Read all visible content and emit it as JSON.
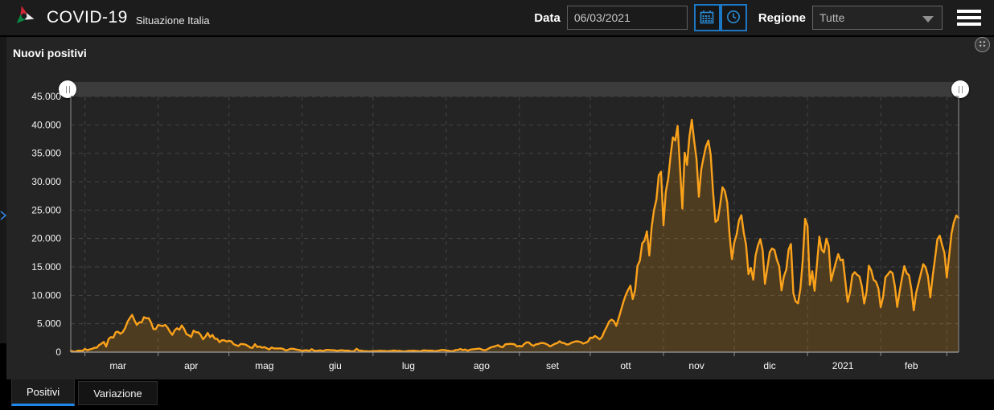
{
  "colors": {
    "accent_blue": "#1f87e8",
    "header_bg": "#1c1c1c",
    "panel_bg": "#242424"
  },
  "header": {
    "title": "COVID-19",
    "subtitle": "Situazione Italia",
    "date_label": "Data",
    "date_value": "06/03/2021",
    "region_label": "Regione",
    "region_value": "Tutte"
  },
  "panel": {
    "title": "Nuovi positivi"
  },
  "tabs": [
    {
      "label": "Positivi",
      "active": true
    },
    {
      "label": "Variazione",
      "active": false
    }
  ],
  "chart_data": {
    "type": "area",
    "title": "Nuovi positivi",
    "x_start": "2020-02-24",
    "x_end": "2021-03-06",
    "ylim": [
      0,
      45000
    ],
    "y_tick_step": 5000,
    "y_tick_labels": [
      "0",
      "5.000",
      "10.000",
      "15.000",
      "20.000",
      "25.000",
      "30.000",
      "35.000",
      "40.000",
      "45.000"
    ],
    "grid": true,
    "legend_position": "none",
    "line_color": "#fba21b",
    "fill_color": "rgba(251,162,27,0.2)",
    "grid_color": "#454545",
    "axis_color": "#909090",
    "months": [
      {
        "label": "mar",
        "start": 6,
        "mid": 20
      },
      {
        "label": "apr",
        "start": 37,
        "mid": 51
      },
      {
        "label": "mag",
        "start": 67,
        "mid": 82
      },
      {
        "label": "giu",
        "start": 98,
        "mid": 112
      },
      {
        "label": "lug",
        "start": 128,
        "mid": 143
      },
      {
        "label": "ago",
        "start": 159,
        "mid": 174
      },
      {
        "label": "set",
        "start": 190,
        "mid": 204
      },
      {
        "label": "ott",
        "start": 220,
        "mid": 235
      },
      {
        "label": "nov",
        "start": 251,
        "mid": 265
      },
      {
        "label": "dic",
        "start": 281,
        "mid": 296
      },
      {
        "label": "2021",
        "start": 312,
        "mid": 327
      },
      {
        "label": "feb",
        "start": 343,
        "mid": 356
      },
      {
        "label": "",
        "start": 371,
        "mid": null
      }
    ],
    "values": [
      221,
      93,
      78,
      250,
      238,
      240,
      566,
      342,
      466,
      587,
      769,
      778,
      1247,
      1492,
      1797,
      977,
      2313,
      2651,
      2547,
      3497,
      3590,
      3233,
      3526,
      4207,
      5322,
      5986,
      6557,
      5560,
      4789,
      5249,
      5210,
      6153,
      5959,
      5974,
      5217,
      4050,
      4053,
      4782,
      4668,
      4585,
      4805,
      4316,
      3599,
      3039,
      3836,
      4204,
      3951,
      4694,
      4092,
      3153,
      2972,
      2667,
      3786,
      3493,
      3491,
      3047,
      2256,
      2729,
      3370,
      2646,
      3021,
      2357,
      2324,
      1739,
      2091,
      2086,
      1872,
      1965,
      1900,
      1389,
      1221,
      1075,
      1444,
      1401,
      1327,
      1083,
      802,
      744,
      1402,
      888,
      992,
      789,
      875,
      675,
      451,
      813,
      665,
      642,
      652,
      669,
      531,
      300,
      397,
      584,
      593,
      516,
      416,
      355,
      178,
      318,
      321,
      177,
      518,
      270,
      197,
      280,
      283,
      202,
      379,
      393,
      346,
      338,
      301,
      210,
      329,
      331,
      251,
      262,
      224,
      113,
      190,
      577,
      296,
      255,
      174,
      175,
      126,
      142,
      187,
      182,
      201,
      235,
      192,
      208,
      138,
      193,
      229,
      276,
      188,
      234,
      169,
      114,
      162,
      230,
      233,
      249,
      219,
      190,
      128,
      282,
      306,
      252,
      275,
      255,
      170,
      212,
      289,
      386,
      379,
      295,
      239,
      159,
      190,
      384,
      402,
      552,
      347,
      463,
      259,
      412,
      481,
      523,
      574,
      629,
      479,
      320,
      403,
      642,
      845,
      947,
      1071,
      1210,
      953,
      878,
      1367,
      1411,
      1462,
      1444,
      1365,
      996,
      1108,
      978,
      1397,
      1733,
      1694,
      1297,
      1108,
      1370,
      1434,
      1597,
      1616,
      1501,
      1297,
      1008,
      1229,
      1452,
      1585,
      1907,
      1638,
      1587,
      1350,
      1392,
      1640,
      1786,
      1912,
      1869,
      1766,
      1494,
      1648,
      1851,
      2548,
      2499,
      2844,
      2578,
      2257,
      2677,
      3678,
      4458,
      5372,
      5724,
      5456,
      4619,
      5901,
      7332,
      8804,
      10010,
      10925,
      11705,
      9338,
      10874,
      15199,
      16079,
      19143,
      19644,
      21273,
      17012,
      21994,
      24991,
      26831,
      31084,
      31758,
      22348,
      28244,
      30550,
      34505,
      37809,
      37242,
      39811,
      32616,
      25271,
      35098,
      32961,
      37978,
      40902,
      37255,
      33979,
      27354,
      32191,
      34283,
      36176,
      37242,
      34767,
      28337,
      22930,
      23232,
      25853,
      29003,
      28352,
      26323,
      20648,
      16377,
      19350,
      20709,
      23225,
      24099,
      21052,
      18887,
      13720,
      14842,
      12756,
      16999,
      18727,
      19903,
      17938,
      12030,
      14844,
      17572,
      18236,
      17992,
      16308,
      15104,
      10872,
      13318,
      14522,
      18040,
      19037,
      10407,
      8913,
      8585,
      11212,
      16202,
      23477,
      22211,
      11831,
      14245,
      10800,
      15378,
      20331,
      18020,
      17533,
      19978,
      18627,
      12532,
      14242,
      15774,
      17246,
      16146,
      16310,
      12545,
      8824,
      10497,
      13571,
      14078,
      13633,
      13331,
      11629,
      8561,
      10593,
      15204,
      14372,
      12715,
      12400,
      11252,
      7925,
      9660,
      13189,
      13659,
      14218,
      13908,
      11641,
      7970,
      10630,
      12956,
      15146,
      13908,
      13532,
      11068,
      7351,
      10386,
      12074,
      13762,
      15479,
      14931,
      13452,
      9630,
      13314,
      16424,
      19886,
      20499,
      18916,
      17455,
      13114,
      17083,
      20884,
      22865,
      24036,
      23641
    ]
  }
}
